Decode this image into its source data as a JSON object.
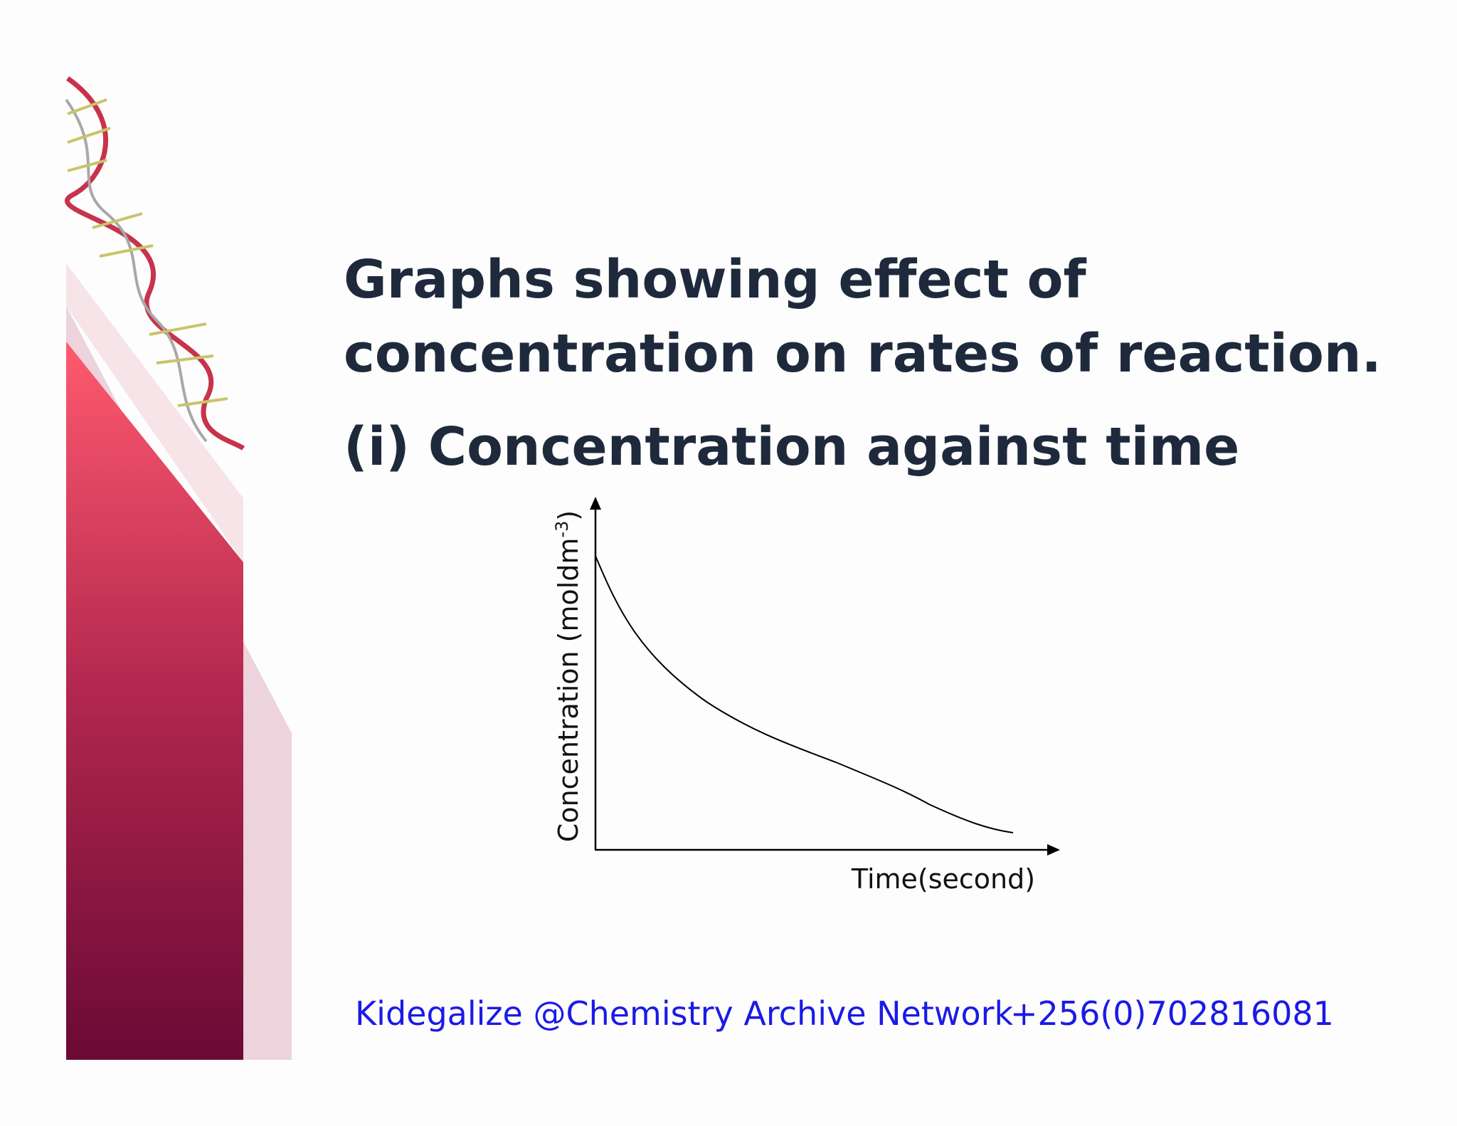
{
  "slide": {
    "title": [
      "Graphs showing effect of",
      "concentration on rates of reaction."
    ],
    "subtitle": "(i)  Concentration against time",
    "graph": {
      "y_label": [
        "Concentration (moldm",
        "-3",
        ")"
      ],
      "x_label": "Time(second)"
    },
    "footer": {
      "credit": "Kidegalize @Chemistry Archive Network",
      "phone": "+256(0)702816081"
    }
  }
}
